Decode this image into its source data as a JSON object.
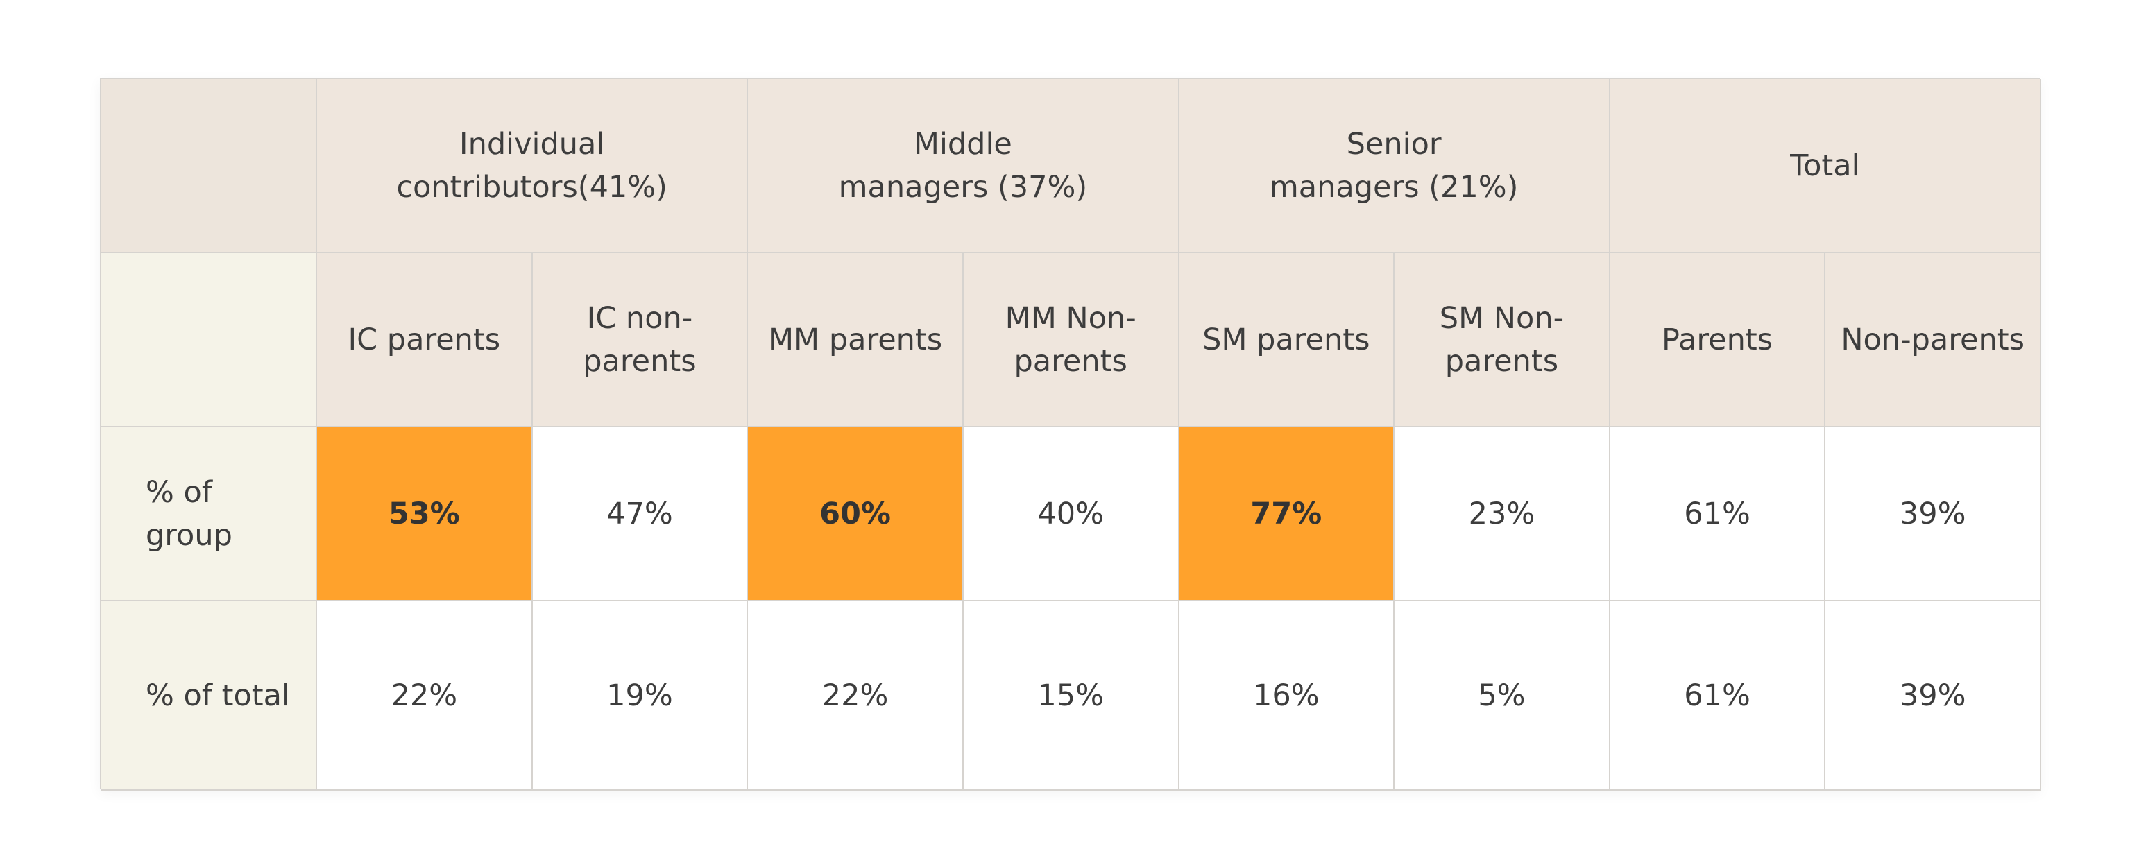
{
  "chart_data": {
    "type": "table",
    "accent_color": "#ffa22c",
    "header_color": "#efe6dd",
    "rowheader_color": "#f5f3e8",
    "group_headers": [
      "Individual\ncontributors(41%)",
      "Middle\nmanagers (37%)",
      "Senior\nmanagers (21%)",
      "Total"
    ],
    "columns": [
      "IC parents",
      "IC non-\nparents",
      "MM parents",
      "MM Non-\nparents",
      "SM parents",
      "SM Non-\nparents",
      "Parents",
      "Non-parents"
    ],
    "rows": [
      {
        "label": "% of\ngroup",
        "values": [
          "53%",
          "47%",
          "60%",
          "40%",
          "77%",
          "23%",
          "61%",
          "39%"
        ],
        "highlighted": [
          true,
          false,
          true,
          false,
          true,
          false,
          false,
          false
        ]
      },
      {
        "label": "% of total",
        "values": [
          "22%",
          "19%",
          "22%",
          "15%",
          "16%",
          "5%",
          "61%",
          "39%"
        ],
        "highlighted": [
          false,
          false,
          false,
          false,
          false,
          false,
          false,
          false
        ]
      }
    ]
  }
}
